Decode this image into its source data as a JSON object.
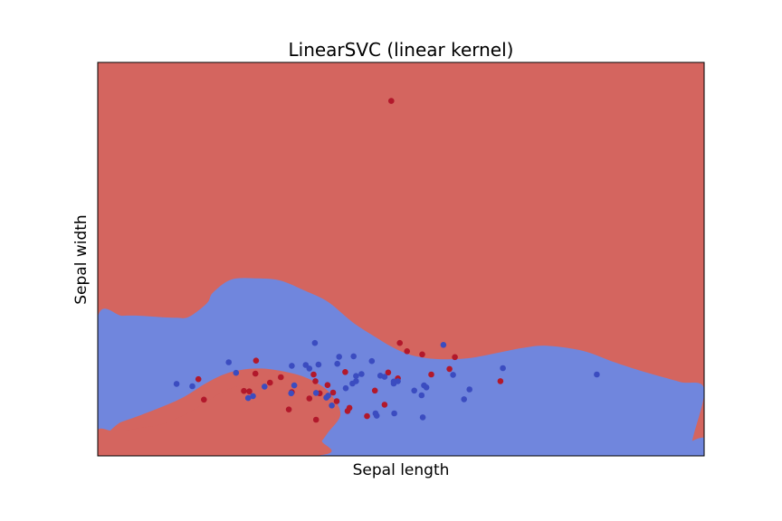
{
  "chart_data": {
    "type": "scatter",
    "title": "LinearSVC (linear kernel)",
    "xlabel": "Sepal length",
    "ylabel": "Sepal width",
    "xlim": [
      0,
      100
    ],
    "ylim": [
      0,
      100
    ],
    "ticks_visible": false,
    "grid": false,
    "legend": "none",
    "colors": {
      "region_class_0": "#d4655f",
      "region_class_1": "#7086dd",
      "point_class_0": "#b2182b",
      "point_class_1": "#3b4cc0"
    },
    "decision_regions": [
      {
        "class": 0,
        "outline": [
          [
            0,
            0
          ],
          [
            100,
            0
          ],
          [
            100,
            100
          ],
          [
            0,
            100
          ]
        ]
      },
      {
        "class": 1,
        "outline": [
          [
            0,
            7.1
          ],
          [
            4,
            8.7
          ],
          [
            9,
            11.5
          ],
          [
            14,
            14.8
          ],
          [
            18,
            18.6
          ],
          [
            22,
            21.3
          ],
          [
            27,
            22.2
          ],
          [
            33,
            20.6
          ],
          [
            37,
            17.7
          ],
          [
            39,
            14.4
          ],
          [
            40,
            10.3
          ],
          [
            38,
            6.0
          ],
          [
            37,
            3.9
          ],
          [
            36,
            2.8
          ],
          [
            37,
            0
          ],
          [
            100,
            0
          ],
          [
            100,
            4.6
          ],
          [
            98,
            3.2
          ],
          [
            100,
            17.0
          ],
          [
            96,
            18.8
          ],
          [
            90,
            21.4
          ],
          [
            85,
            23.9
          ],
          [
            80,
            26.7
          ],
          [
            74,
            28.0
          ],
          [
            70,
            27.4
          ],
          [
            66,
            26.2
          ],
          [
            61,
            24.8
          ],
          [
            56,
            24.6
          ],
          [
            52,
            25.5
          ],
          [
            49,
            27.3
          ],
          [
            46,
            30.0
          ],
          [
            42,
            34.0
          ],
          [
            38,
            39.1
          ],
          [
            34,
            42.1
          ],
          [
            30,
            44.6
          ],
          [
            26,
            45.1
          ],
          [
            22,
            44.8
          ],
          [
            19,
            41.5
          ],
          [
            18,
            38.8
          ],
          [
            15,
            35.3
          ],
          [
            13,
            35.1
          ],
          [
            11,
            35.2
          ],
          [
            7,
            35.6
          ],
          [
            4,
            35.6
          ],
          [
            0,
            35.2
          ]
        ]
      },
      {
        "class": 0,
        "outline": [
          [
            0,
            0
          ],
          [
            0,
            6.6
          ],
          [
            3,
            6.2
          ],
          [
            7,
            7.1
          ],
          [
            11,
            8.2
          ],
          [
            15,
            11.0
          ],
          [
            18,
            13.8
          ],
          [
            21,
            16.6
          ],
          [
            24,
            18.0
          ],
          [
            28,
            18.5
          ],
          [
            32,
            17.5
          ],
          [
            36,
            15.6
          ],
          [
            38,
            12.2
          ],
          [
            39,
            9.6
          ],
          [
            38,
            6.4
          ],
          [
            37,
            3.9
          ],
          [
            35.5,
            0
          ]
        ]
      },
      {
        "class": 1,
        "outline": [
          [
            99,
            0
          ],
          [
            100,
            0
          ],
          [
            100,
            4.6
          ],
          [
            97,
            2.6
          ]
        ]
      }
    ],
    "series": [
      {
        "class": 0,
        "x": [
          48.4,
          66.4,
          55.0,
          51.0,
          49.8,
          53.5,
          58.0,
          58.9,
          47.9,
          40.8,
          38.8,
          35.6,
          35.9,
          37.9,
          36.6,
          34.9,
          32.0,
          31.5,
          36.0,
          39.4,
          41.5,
          44.4,
          49.5,
          47.3,
          45.7,
          41.2,
          26.1,
          28.4,
          30.2,
          25.0,
          17.5,
          24.1,
          26.0,
          16.6
        ],
        "y": [
          90.2,
          19.0,
          20.7,
          26.6,
          28.7,
          25.8,
          22.1,
          25.1,
          21.2,
          21.3,
          16.1,
          20.7,
          19.0,
          18.0,
          15.9,
          14.6,
          16.2,
          11.8,
          9.2,
          13.9,
          12.2,
          10.1,
          19.7,
          13.0,
          16.6,
          11.4,
          24.2,
          18.6,
          20.0,
          16.4,
          14.3,
          16.5,
          20.9,
          19.5
        ]
      },
      {
        "class": 1,
        "x": [
          13.0,
          15.6,
          21.6,
          24.8,
          22.8,
          25.6,
          27.5,
          31.9,
          32.0,
          34.9,
          35.8,
          34.3,
          36.4,
          38.0,
          39.5,
          39.8,
          42.2,
          42.6,
          43.5,
          42.6,
          45.2,
          46.6,
          47.3,
          48.8,
          48.9,
          53.6,
          57.0,
          60.4,
          58.6,
          61.3,
          66.8,
          82.3,
          49.5,
          52.2,
          53.8,
          54.2,
          53.4,
          48.8,
          45.8,
          46.0,
          42.0,
          40.9,
          36.0,
          37.7,
          38.6,
          32.4
        ],
        "y": [
          18.3,
          17.7,
          23.8,
          14.7,
          21.1,
          15.2,
          17.6,
          15.9,
          22.9,
          22.2,
          28.7,
          23.1,
          23.2,
          15.3,
          23.4,
          25.2,
          25.3,
          19.0,
          20.8,
          20.3,
          24.1,
          20.4,
          20.1,
          18.4,
          10.8,
          9.8,
          28.2,
          14.4,
          20.6,
          16.9,
          22.3,
          20.7,
          19.0,
          16.6,
          17.9,
          17.4,
          15.4,
          18.9,
          10.8,
          10.2,
          18.4,
          17.2,
          16.0,
          14.8,
          12.8,
          17.9
        ]
      }
    ]
  }
}
